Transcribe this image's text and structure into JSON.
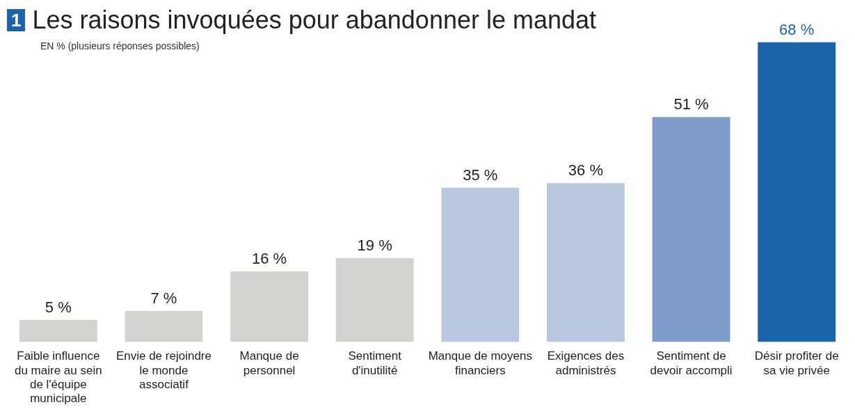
{
  "chart_data": {
    "type": "bar",
    "title": "Les raisons invoquées pour abandonner le mandat",
    "subtitle": "EN % (plusieurs réponses possibles)",
    "annotations": [
      "1"
    ],
    "categories": [
      "Faible influence du maire au sein de l'équipe municipale",
      "Envie de rejoindre le monde associatif",
      "Manque de personnel",
      "Sentiment d'inutilité",
      "Manque de moyens financiers",
      "Exigences des administrés",
      "Sentiment de devoir accompli",
      "Désir profiter de sa vie privée"
    ],
    "values": [
      5,
      7,
      16,
      19,
      35,
      36,
      51,
      68
    ],
    "colors": [
      "#d2d2ce",
      "#d2d2ce",
      "#d2d2ce",
      "#d2d2ce",
      "#b9c8df",
      "#b9c8df",
      "#7f9bc9",
      "#1b64a9"
    ],
    "value_labels": [
      "5 %",
      "7 %",
      "16 %",
      "19 %",
      "35 %",
      "36 %",
      "51 %",
      "68 %"
    ]
  }
}
